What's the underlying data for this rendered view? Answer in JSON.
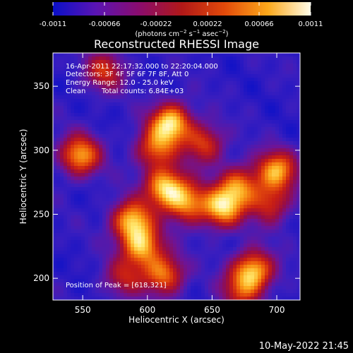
{
  "chart_data": {
    "type": "heatmap",
    "title": "Reconstructed RHESSI Image",
    "xlabel": "Heliocentric X (arcsec)",
    "ylabel": "Heliocentric Y (arcsec)",
    "xlim": [
      527,
      718
    ],
    "ylim": [
      183,
      376
    ],
    "x_ticks": [
      550,
      600,
      650,
      700
    ],
    "y_ticks": [
      200,
      250,
      300,
      350
    ],
    "colorbar": {
      "ticks": [
        "-0.0011",
        "-0.00066",
        "-0.00022",
        "0.00022",
        "0.00066",
        "0.0011"
      ],
      "range": [
        -0.0011,
        0.0011
      ],
      "units_prefix": "(photons cm",
      "units_exp1": "−2",
      "units_mid": " s",
      "units_exp2": "−1",
      "units_end": " asec",
      "units_exp3": "−2",
      "units_close": ")",
      "colors": [
        "#0a10c8",
        "#5a14b4",
        "#8a0c6e",
        "#b01818",
        "#e24a0a",
        "#fca81a",
        "#fffce8"
      ]
    },
    "sources": [
      {
        "x": 618,
        "y": 321,
        "intensity": 1.0
      },
      {
        "x": 606,
        "y": 301,
        "intensity": 0.65
      },
      {
        "x": 644,
        "y": 305,
        "intensity": 0.6
      },
      {
        "x": 567,
        "y": 362,
        "intensity": 0.55
      },
      {
        "x": 548,
        "y": 296,
        "intensity": 0.85
      },
      {
        "x": 614,
        "y": 271,
        "intensity": 0.95
      },
      {
        "x": 631,
        "y": 259,
        "intensity": 0.75
      },
      {
        "x": 658,
        "y": 255,
        "intensity": 0.92
      },
      {
        "x": 671,
        "y": 272,
        "intensity": 0.7
      },
      {
        "x": 700,
        "y": 284,
        "intensity": 0.85
      },
      {
        "x": 695,
        "y": 258,
        "intensity": 0.55
      },
      {
        "x": 588,
        "y": 245,
        "intensity": 0.9
      },
      {
        "x": 596,
        "y": 225,
        "intensity": 0.85
      },
      {
        "x": 613,
        "y": 203,
        "intensity": 0.75
      },
      {
        "x": 582,
        "y": 200,
        "intensity": 0.45
      },
      {
        "x": 682,
        "y": 206,
        "intensity": 0.9
      },
      {
        "x": 672,
        "y": 190,
        "intensity": 0.5
      }
    ],
    "info": {
      "time_range": "16-Apr-2011 22:17:32.000 to 22:20:04.000",
      "detectors": "Detectors: 3F 4F 5F 6F 7F 8F, Att 0",
      "energy": "Energy Range: 12.0 - 25.0 keV",
      "algorithm": "Clean",
      "counts": "Total counts: 6.84E+03",
      "peak": "Position of Peak = [618,321]"
    }
  },
  "footer_date": "10-May-2022 21:45"
}
